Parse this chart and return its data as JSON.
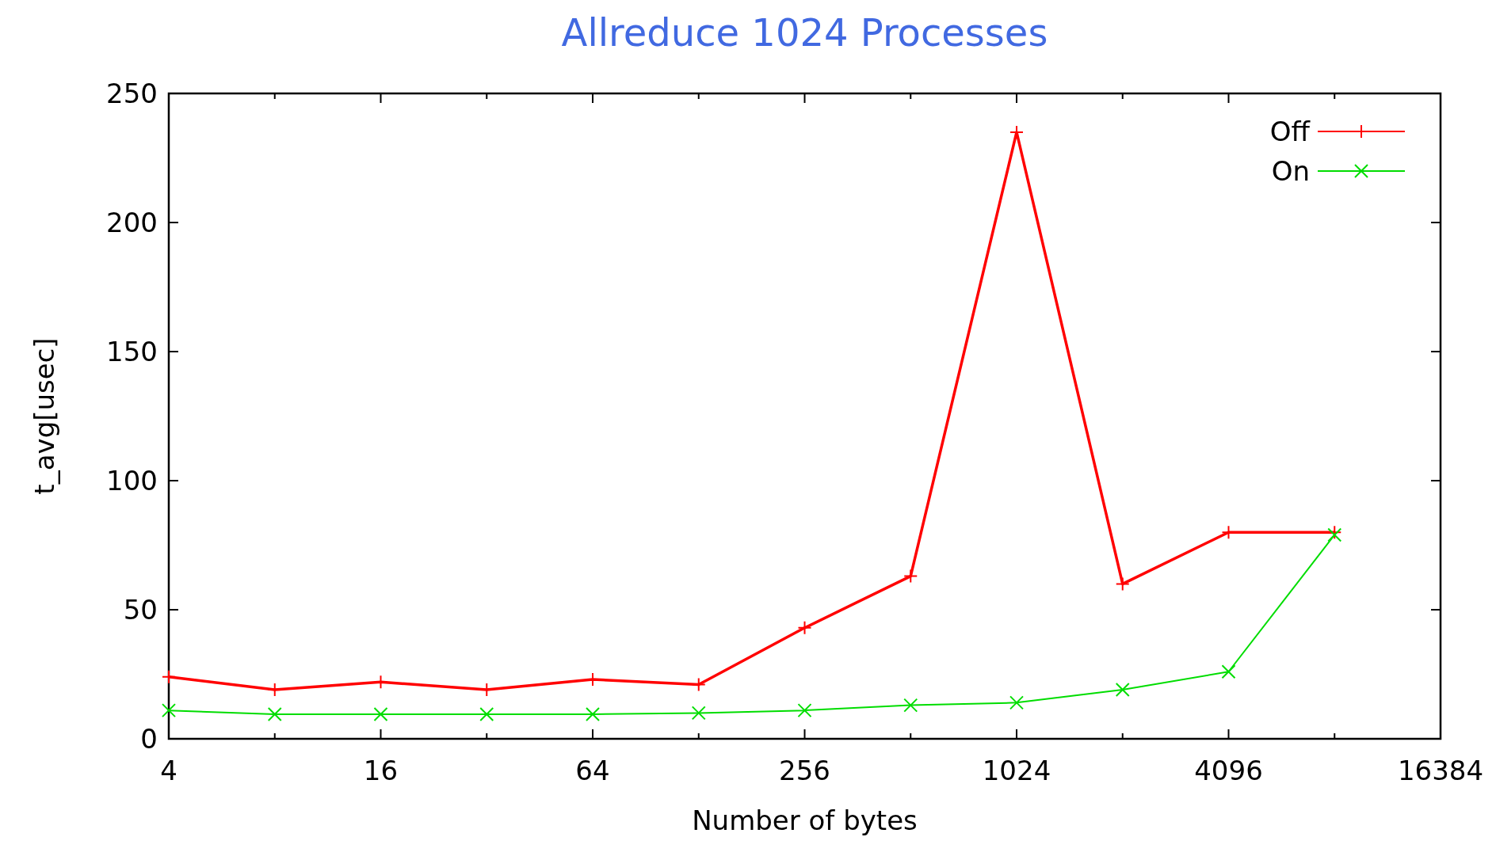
{
  "chart_data": {
    "type": "line",
    "title": "Allreduce 1024 Processes",
    "xlabel": "Number of bytes",
    "ylabel": "t_avg[usec]",
    "x": [
      4,
      8,
      16,
      32,
      64,
      128,
      256,
      512,
      1024,
      2048,
      4096,
      8192
    ],
    "series": [
      {
        "name": "Off",
        "color": "#ff0000",
        "marker": "plus",
        "values": [
          24,
          19,
          22,
          19,
          23,
          21,
          43,
          63,
          235,
          60,
          80,
          80
        ]
      },
      {
        "name": "On",
        "color": "#00dd00",
        "marker": "cross",
        "values": [
          11,
          9.5,
          9.5,
          9.5,
          9.5,
          10,
          11,
          13,
          14,
          19,
          26,
          79
        ]
      }
    ],
    "log": "x",
    "xlim": [
      4,
      16384
    ],
    "xticks": [
      4,
      16,
      64,
      256,
      1024,
      4096,
      16384
    ],
    "ylim": [
      0,
      250
    ],
    "yticks": [
      0,
      50,
      100,
      150,
      200,
      250
    ],
    "grid": false,
    "legend": "top right"
  }
}
